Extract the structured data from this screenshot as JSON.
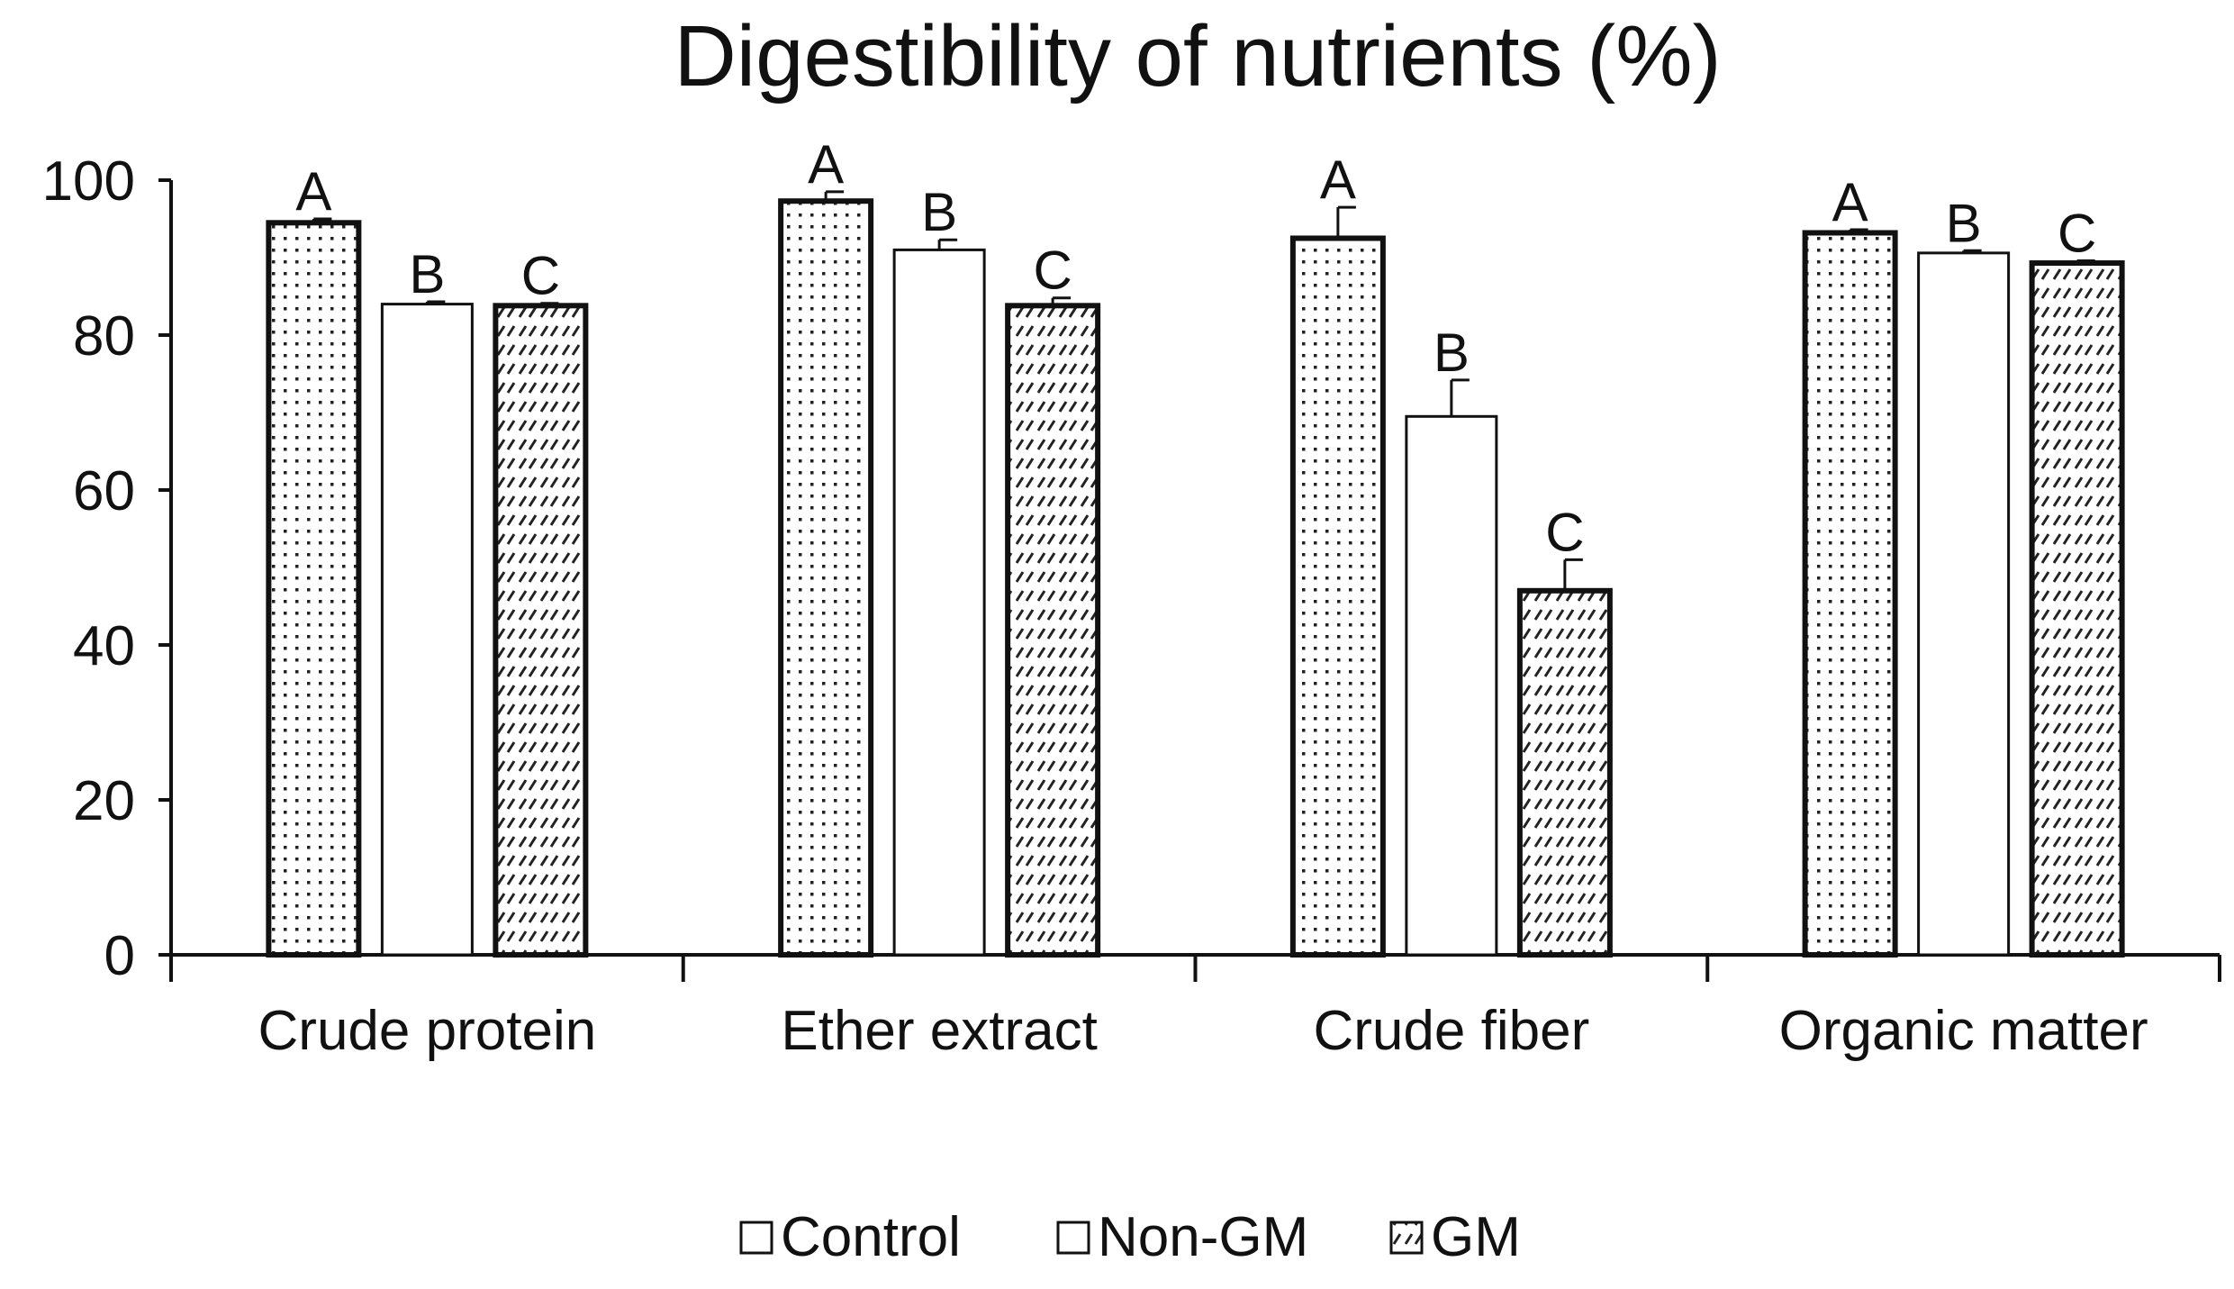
{
  "chart_data": {
    "type": "bar",
    "title": "Digestibility of nutrients (%)",
    "xlabel": "",
    "ylabel": "",
    "ylim": [
      0,
      100
    ],
    "yticks": [
      0,
      20,
      40,
      60,
      80,
      100
    ],
    "grid": false,
    "legend_position": "bottom",
    "categories": [
      "Crude protein",
      "Ether extract",
      "Crude fiber",
      "Organic matter"
    ],
    "series": [
      {
        "name": "Control",
        "pattern": "dots",
        "values": [
          94.5,
          97.3,
          92.5,
          93.2
        ],
        "errors": [
          0.5,
          1.2,
          4.0,
          0.4
        ],
        "letters": [
          "A",
          "A",
          "A",
          "A"
        ]
      },
      {
        "name": "Non-GM",
        "pattern": "none",
        "values": [
          84.0,
          91.0,
          69.5,
          90.6
        ],
        "errors": [
          0.3,
          1.3,
          4.7,
          0.3
        ],
        "letters": [
          "B",
          "B",
          "B",
          "B"
        ]
      },
      {
        "name": "GM",
        "pattern": "dashes",
        "values": [
          83.8,
          83.8,
          47.0,
          89.3
        ],
        "errors": [
          0.3,
          1.0,
          4.0,
          0.3
        ],
        "letters": [
          "C",
          "C",
          "C",
          "C"
        ]
      }
    ],
    "colors": {
      "bar_outline": "#111111",
      "bar_fill": "#ffffff",
      "axis": "#111111",
      "text": "#111111"
    }
  }
}
